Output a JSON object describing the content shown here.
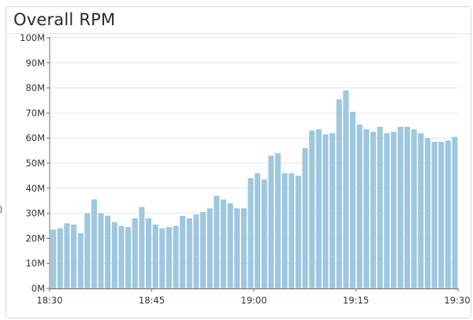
{
  "widget": {
    "title": "Overall RPM"
  },
  "colors": {
    "bar": "#9ec7e0",
    "grid": "#e6e6e6",
    "axis": "#6f6f6f",
    "text": "#333333"
  },
  "chart_data": {
    "type": "bar",
    "title": "Overall RPM",
    "xlabel": "",
    "ylabel": "",
    "ylim": [
      0,
      100000000
    ],
    "yticks": [
      {
        "value": 0,
        "label": "0M"
      },
      {
        "value": 10000000,
        "label": "10M"
      },
      {
        "value": 20000000,
        "label": "20M"
      },
      {
        "value": 30000000,
        "label": "30M"
      },
      {
        "value": 40000000,
        "label": "40M"
      },
      {
        "value": 50000000,
        "label": "50M"
      },
      {
        "value": 60000000,
        "label": "60M"
      },
      {
        "value": 70000000,
        "label": "70M"
      },
      {
        "value": 80000000,
        "label": "80M"
      },
      {
        "value": 90000000,
        "label": "90M"
      },
      {
        "value": 100000000,
        "label": "100M"
      }
    ],
    "xticks": [
      {
        "minute": 0,
        "label": "18:30"
      },
      {
        "minute": 15,
        "label": "18:45"
      },
      {
        "minute": 30,
        "label": "19:00"
      },
      {
        "minute": 45,
        "label": "19:15"
      },
      {
        "minute": 60,
        "label": "19:30"
      }
    ],
    "grid": true,
    "values_millions": [
      23.5,
      24.0,
      26.0,
      25.5,
      22.0,
      30.0,
      35.5,
      30.0,
      29.0,
      26.5,
      25.0,
      24.5,
      28.0,
      32.5,
      28.0,
      25.5,
      24.0,
      24.5,
      25.0,
      29.0,
      28.0,
      29.5,
      30.5,
      32.0,
      37.0,
      35.5,
      34.0,
      32.0,
      32.0,
      44.0,
      46.0,
      43.5,
      53.0,
      54.0,
      46.0,
      46.0,
      45.0,
      56.0,
      63.0,
      63.5,
      61.5,
      62.0,
      75.5,
      79.0,
      70.5,
      65.5,
      63.5,
      62.5,
      64.5,
      62.0,
      62.5,
      64.5,
      64.5,
      63.5,
      62.0,
      60.0,
      58.5,
      58.5,
      59.0,
      60.5
    ]
  },
  "side_glyph": ")"
}
